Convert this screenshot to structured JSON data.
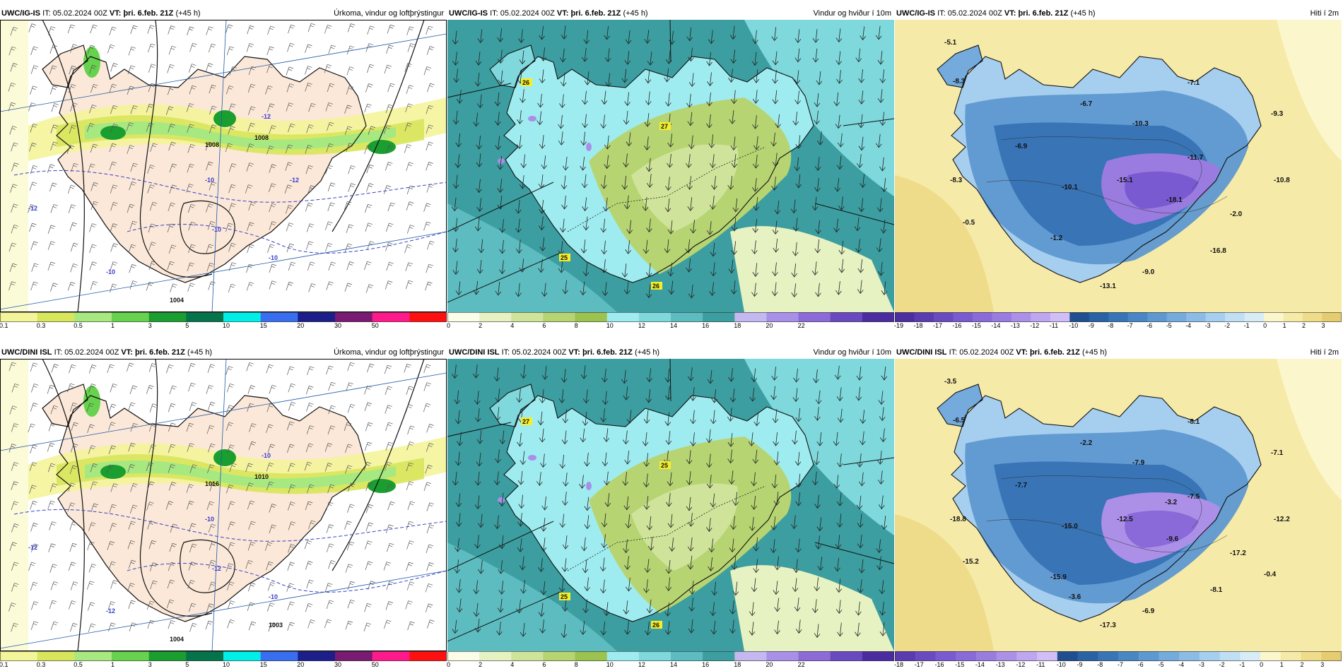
{
  "panels": [
    {
      "id": "p1",
      "model": "UWC/IG-IS",
      "it_prefix": "IT:",
      "it_value": "05.02.2024 00Z",
      "vt_prefix": "VT:",
      "vt_value": "þri. 6.feb. 21Z",
      "lead": "(+45 h)",
      "product": "Úrkoma, vindur og loftþrýstingur",
      "isobar_labels": [
        "1008",
        "1008",
        "1004"
      ],
      "temp_labels": [
        "-10",
        "-12",
        "-12",
        "-10",
        "-10",
        "-10",
        "-12"
      ],
      "legend": {
        "labels": [
          "0.1",
          "0.3",
          "0.5",
          "1",
          "3",
          "5",
          "10",
          "15",
          "20",
          "30",
          "50"
        ],
        "colors": [
          "#f4f49a",
          "#d8e65c",
          "#a8e880",
          "#66d24e",
          "#1a9e30",
          "#06744a",
          "#00f0e8",
          "#3a6ef0",
          "#1c1e8a",
          "#7a1a72",
          "#ff1a8c",
          "#ff1010"
        ]
      }
    },
    {
      "id": "p2",
      "model": "UWC/IG-IS",
      "it_prefix": "IT:",
      "it_value": "05.02.2024 00Z",
      "vt_prefix": "VT:",
      "vt_value": "þri. 6.feb. 21Z",
      "lead": "(+45 h)",
      "product": "Vindur og hviður í 10m",
      "gust_labels": [
        "26",
        "27",
        "25",
        "26"
      ],
      "legend": {
        "labels": [
          "0",
          "2",
          "4",
          "6",
          "8",
          "10",
          "12",
          "14",
          "16",
          "18",
          "20",
          "22"
        ],
        "colors": [
          "#fbfde8",
          "#e6f2c2",
          "#cfe49a",
          "#b6d472",
          "#9cc250",
          "#9fecf0",
          "#7ed8dc",
          "#5cbcc0",
          "#3c9ea0",
          "#c4b8f0",
          "#a890e8",
          "#8c6ad8",
          "#6a48c0",
          "#4a2ca0"
        ]
      }
    },
    {
      "id": "p3",
      "model": "UWC/IG-IS",
      "it_prefix": "IT:",
      "it_value": "05.02.2024 00Z",
      "vt_prefix": "VT:",
      "vt_value": "þri. 6.feb. 21Z",
      "lead": "(+45 h)",
      "product": "Hiti í 2m",
      "temp_labels": [
        "-5.1",
        "-8.3",
        "-6.7",
        "-10.3",
        "-7.1",
        "-9.3",
        "-6.9",
        "-8.3",
        "-10.1",
        "-15.1",
        "-11.7",
        "-18.1",
        "-10.8",
        "-0.5",
        "-2.0",
        "-1.2",
        "-16.8",
        "-9.0",
        "-13.1"
      ],
      "legend": {
        "labels": [
          "-19",
          "-18",
          "-17",
          "-16",
          "-15",
          "-14",
          "-13",
          "-12",
          "-11",
          "-10",
          "-9",
          "-8",
          "-7",
          "-6",
          "-5",
          "-4",
          "-3",
          "-2",
          "-1",
          "0",
          "1",
          "2",
          "3"
        ],
        "colors": [
          "#4b2fa0",
          "#5a3cb0",
          "#6a4ac0",
          "#7a5ad0",
          "#8a6ad8",
          "#9a7ce0",
          "#ac90e8",
          "#bea6f0",
          "#d0bef6",
          "#1f4f8f",
          "#2a62a4",
          "#3874b6",
          "#4a86c4",
          "#5e98d0",
          "#74aadc",
          "#8cbce6",
          "#a6ceee",
          "#c0def4",
          "#d8ecf6",
          "#fbf6cc",
          "#f6eaa8",
          "#efdc8a",
          "#e6cc70"
        ]
      }
    },
    {
      "id": "p4",
      "model": "UWC/DINI ISL",
      "it_prefix": "IT:",
      "it_value": "05.02.2024 00Z",
      "vt_prefix": "VT:",
      "vt_value": "þri. 6.feb. 21Z",
      "lead": "(+45 h)",
      "product": "Úrkoma, vindur og loftþrýstingur",
      "isobar_labels": [
        "1016",
        "1010",
        "1004",
        "1003"
      ],
      "temp_labels": [
        "-12",
        "-10",
        "-12",
        "-12",
        "-10",
        "-10"
      ],
      "legend": {
        "labels": [
          "0.1",
          "0.3",
          "0.5",
          "1",
          "3",
          "5",
          "10",
          "15",
          "20",
          "30",
          "50"
        ],
        "colors": [
          "#f4f49a",
          "#d8e65c",
          "#a8e880",
          "#66d24e",
          "#1a9e30",
          "#06744a",
          "#00f0e8",
          "#3a6ef0",
          "#1c1e8a",
          "#7a1a72",
          "#ff1a8c",
          "#ff1010"
        ]
      }
    },
    {
      "id": "p5",
      "model": "UWC/DINI ISL",
      "it_prefix": "IT:",
      "it_value": "05.02.2024 00Z",
      "vt_prefix": "VT:",
      "vt_value": "þri. 6.feb. 21Z",
      "lead": "(+45 h)",
      "product": "Vindur og hviður í 10m",
      "gust_labels": [
        "27",
        "25",
        "25",
        "26"
      ],
      "legend": {
        "labels": [
          "0",
          "2",
          "4",
          "6",
          "8",
          "10",
          "12",
          "14",
          "16",
          "18",
          "20",
          "22"
        ],
        "colors": [
          "#fbfde8",
          "#e6f2c2",
          "#cfe49a",
          "#b6d472",
          "#9cc250",
          "#9fecf0",
          "#7ed8dc",
          "#5cbcc0",
          "#3c9ea0",
          "#c4b8f0",
          "#a890e8",
          "#8c6ad8",
          "#6a48c0",
          "#4a2ca0"
        ]
      }
    },
    {
      "id": "p6",
      "model": "UWC/DINI ISL",
      "it_prefix": "IT:",
      "it_value": "05.02.2024 00Z",
      "vt_prefix": "VT:",
      "vt_value": "þri. 6.feb. 21Z",
      "lead": "(+45 h)",
      "product": "Hiti í 2m",
      "temp_labels": [
        "-3.5",
        "-6.5",
        "-2.2",
        "-7.9",
        "-8.1",
        "-7.1",
        "-7.7",
        "-18.8",
        "-15.0",
        "-12.5",
        "-7.5",
        "-9.6",
        "-12.2",
        "-15.2",
        "-17.2",
        "-15.9",
        "-8.1",
        "-6.9",
        "-17.3",
        "-0.4",
        "-3.2",
        "-3.6"
      ],
      "legend": {
        "labels": [
          "-18",
          "-17",
          "-16",
          "-15",
          "-14",
          "-13",
          "-12",
          "-11",
          "-10",
          "-9",
          "-8",
          "-7",
          "-6",
          "-5",
          "-4",
          "-3",
          "-2",
          "-1",
          "0",
          "1",
          "2",
          "3"
        ],
        "colors": [
          "#5a3cb0",
          "#6a4ac0",
          "#7a5ad0",
          "#8a6ad8",
          "#9a7ce0",
          "#ac90e8",
          "#bea6f0",
          "#d0bef6",
          "#1f4f8f",
          "#2a62a4",
          "#3874b6",
          "#4a86c4",
          "#5e98d0",
          "#74aadc",
          "#8cbce6",
          "#a6ceee",
          "#c0def4",
          "#d8ecf6",
          "#fbf6cc",
          "#f6eaa8",
          "#efdc8a",
          "#e6cc70"
        ]
      }
    }
  ]
}
